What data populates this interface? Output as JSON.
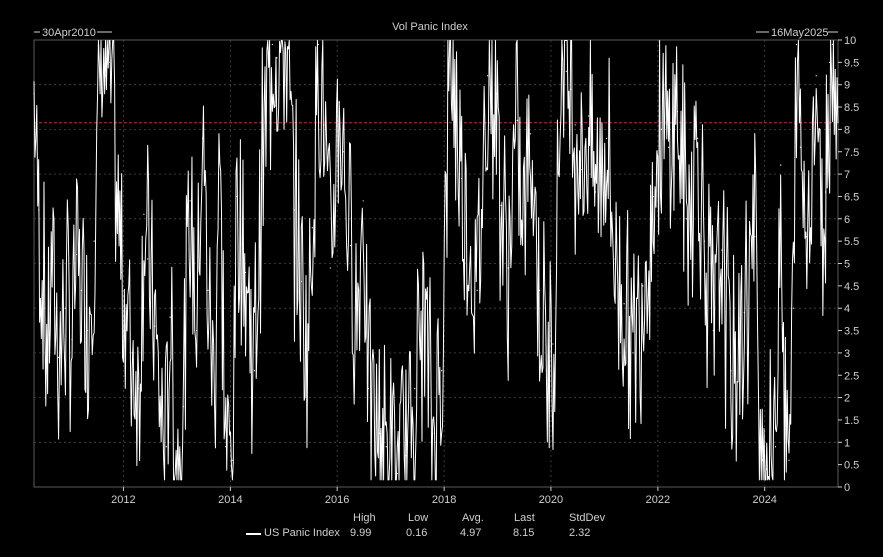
{
  "chart_data": {
    "type": "line",
    "title": "Vol Panic Index",
    "start_label": "30Apr2010",
    "end_label": "16May2025",
    "x_range": [
      "2010-04-30",
      "2025-05-16"
    ],
    "ylim": [
      0,
      10
    ],
    "y_ticks": [
      "0",
      "0.5",
      "1",
      "1.5",
      "2",
      "2.5",
      "3",
      "3.5",
      "4",
      "4.5",
      "5",
      "5.5",
      "6",
      "6.5",
      "7",
      "7.5",
      "8",
      "8.5",
      "9",
      "9.5",
      "10"
    ],
    "x_ticks": [
      "2012",
      "2014",
      "2016",
      "2018",
      "2020",
      "2022",
      "2024"
    ],
    "grid": true,
    "reference_line": 8.15,
    "colors": {
      "background": "#000000",
      "series": "#ffffff",
      "reference": "#c03030",
      "grid": "#4a4a4a",
      "text": "#cfcfcf"
    },
    "series": [
      {
        "name": "US Panic Index",
        "points": [
          [
            "2010-04-30",
            8.8
          ],
          [
            "2010-06-01",
            6.2
          ],
          [
            "2010-07-01",
            4.3
          ],
          [
            "2010-08-01",
            3.2
          ],
          [
            "2010-09-01",
            5.1
          ],
          [
            "2010-10-15",
            2.9
          ],
          [
            "2010-12-01",
            4.0
          ],
          [
            "2011-01-15",
            3.3
          ],
          [
            "2011-02-15",
            5.2
          ],
          [
            "2011-03-20",
            4.4
          ],
          [
            "2011-05-01",
            3.5
          ],
          [
            "2011-06-15",
            5.5
          ],
          [
            "2011-08-01",
            9.9
          ],
          [
            "2011-09-01",
            9.2
          ],
          [
            "2011-10-01",
            9.5
          ],
          [
            "2011-11-15",
            6.5
          ],
          [
            "2011-12-20",
            4.8
          ],
          [
            "2012-01-20",
            4.0
          ],
          [
            "2012-03-01",
            3.0
          ],
          [
            "2012-04-15",
            2.2
          ],
          [
            "2012-05-20",
            6.1
          ],
          [
            "2012-06-15",
            5.1
          ],
          [
            "2012-08-01",
            3.6
          ],
          [
            "2012-09-15",
            1.4
          ],
          [
            "2012-10-20",
            0.9
          ],
          [
            "2012-11-15",
            3.8
          ],
          [
            "2013-01-01",
            0.3
          ],
          [
            "2013-02-15",
            1.8
          ],
          [
            "2013-04-01",
            6.4
          ],
          [
            "2013-05-15",
            3.5
          ],
          [
            "2013-06-25",
            7.8
          ],
          [
            "2013-08-01",
            4.4
          ],
          [
            "2013-09-15",
            2.0
          ],
          [
            "2013-10-15",
            7.9
          ],
          [
            "2013-12-01",
            0.9
          ],
          [
            "2014-01-15",
            0.6
          ],
          [
            "2014-02-15",
            6.5
          ],
          [
            "2014-04-15",
            4.8
          ],
          [
            "2014-06-15",
            2.6
          ],
          [
            "2014-08-01",
            6.9
          ],
          [
            "2014-10-15",
            9.9
          ],
          [
            "2014-11-15",
            9.6
          ],
          [
            "2015-01-15",
            9.8
          ],
          [
            "2015-03-15",
            6.2
          ],
          [
            "2015-05-01",
            4.6
          ],
          [
            "2015-06-15",
            3.2
          ],
          [
            "2015-07-15",
            5.8
          ],
          [
            "2015-08-25",
            9.9
          ],
          [
            "2015-10-01",
            8.1
          ],
          [
            "2015-11-15",
            4.9
          ],
          [
            "2016-01-15",
            8.6
          ],
          [
            "2016-02-15",
            7.5
          ],
          [
            "2016-04-01",
            5.4
          ],
          [
            "2016-05-15",
            3.7
          ],
          [
            "2016-06-27",
            6.4
          ],
          [
            "2016-08-01",
            2.2
          ],
          [
            "2016-10-15",
            1.2
          ],
          [
            "2016-12-01",
            0.9
          ],
          [
            "2017-02-15",
            0.3
          ],
          [
            "2017-04-15",
            0.7
          ],
          [
            "2017-06-15",
            2.2
          ],
          [
            "2017-08-15",
            4.0
          ],
          [
            "2017-10-15",
            1.2
          ],
          [
            "2017-12-15",
            2.6
          ],
          [
            "2018-02-08",
            9.9
          ],
          [
            "2018-03-15",
            8.7
          ],
          [
            "2018-05-01",
            6.9
          ],
          [
            "2018-07-01",
            5.3
          ],
          [
            "2018-08-15",
            4.4
          ],
          [
            "2018-10-25",
            9.2
          ],
          [
            "2018-12-24",
            8.8
          ],
          [
            "2019-01-25",
            6.3
          ],
          [
            "2019-03-15",
            4.9
          ],
          [
            "2019-05-15",
            8.2
          ],
          [
            "2019-06-15",
            5.6
          ],
          [
            "2019-08-15",
            7.9
          ],
          [
            "2019-10-15",
            4.4
          ],
          [
            "2019-12-01",
            2.6
          ],
          [
            "2020-01-15",
            3.2
          ],
          [
            "2020-03-16",
            9.99
          ],
          [
            "2020-04-15",
            9.3
          ],
          [
            "2020-05-15",
            8.9
          ],
          [
            "2020-06-15",
            8.1
          ],
          [
            "2020-08-01",
            7.1
          ],
          [
            "2020-09-15",
            8.3
          ],
          [
            "2020-11-01",
            6.6
          ],
          [
            "2021-01-15",
            7.8
          ],
          [
            "2021-03-15",
            5.1
          ],
          [
            "2021-05-15",
            4.1
          ],
          [
            "2021-07-15",
            3.0
          ],
          [
            "2021-09-20",
            4.5
          ],
          [
            "2021-11-30",
            6.5
          ],
          [
            "2022-01-25",
            8.0
          ],
          [
            "2022-03-15",
            7.6
          ],
          [
            "2022-05-15",
            8.4
          ],
          [
            "2022-07-15",
            6.0
          ],
          [
            "2022-09-30",
            7.8
          ],
          [
            "2022-11-15",
            5.5
          ],
          [
            "2023-01-15",
            3.5
          ],
          [
            "2023-03-15",
            5.3
          ],
          [
            "2023-05-15",
            2.6
          ],
          [
            "2023-07-15",
            3.1
          ],
          [
            "2023-08-15",
            3.9
          ],
          [
            "2023-10-25",
            5.6
          ],
          [
            "2023-12-15",
            0.6
          ],
          [
            "2024-01-15",
            0.4
          ],
          [
            "2024-03-15",
            0.9
          ],
          [
            "2024-04-19",
            7.2
          ],
          [
            "2024-05-15",
            1.4
          ],
          [
            "2024-06-15",
            0.6
          ],
          [
            "2024-07-15",
            4.0
          ],
          [
            "2024-08-05",
            9.9
          ],
          [
            "2024-09-01",
            7.6
          ],
          [
            "2024-10-15",
            5.6
          ],
          [
            "2024-12-18",
            9.2
          ],
          [
            "2025-01-20",
            5.9
          ],
          [
            "2025-02-20",
            6.6
          ],
          [
            "2025-03-20",
            9.5
          ],
          [
            "2025-04-08",
            9.9
          ],
          [
            "2025-05-16",
            8.15
          ]
        ]
      }
    ],
    "stats": {
      "headers": [
        "High",
        "Low",
        "Avg.",
        "Last",
        "StdDev"
      ],
      "values": [
        "9.99",
        "0.16",
        "4.97",
        "8.15",
        "2.32"
      ]
    }
  }
}
